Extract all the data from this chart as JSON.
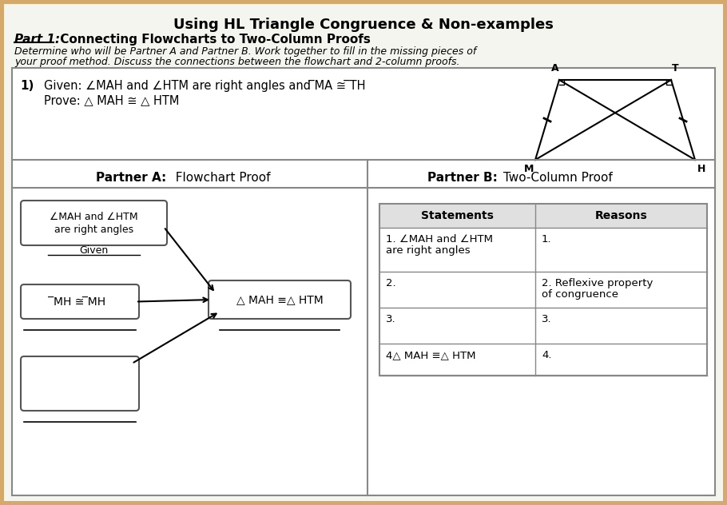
{
  "title": "Using HL Triangle Congruence & Non-examples",
  "part_label": "Part 1:",
  "part_title": " Connecting Flowcharts to Two-Column Proofs",
  "desc_line1": "Determine who will be Partner A and Partner B. Work together to fill in the missing pieces of",
  "desc_line2": "your proof method. Discuss the connections between the flowchart and 2-column proofs.",
  "problem_num": "1)",
  "given_text": "Given: ∠MAH and ∠HTM are right angles and ̅MA ≅ ̅TH",
  "prove_text": "Prove: △ MAH ≅ △ HTM",
  "partner_a_label": "Partner A:",
  "partner_a_title": "  Flowchart Proof",
  "partner_b_label": "Partner B:",
  "partner_b_title": " Two-Column Proof",
  "box1_line1": "∠MAH and ∠HTM",
  "box1_line2": "are right angles",
  "box1_sub": "Given",
  "box2_text": "̅MH ≅ ̅MH",
  "box3_text": "△ MAH ≡△ HTM",
  "statements_header": "Statements",
  "reasons_header": "Reasons",
  "stmt1_line1": "1. ∠MAH and ∠HTM",
  "stmt1_line2": "are right angles",
  "reason1": "1.",
  "stmt2": "2.",
  "reason2_line1": "2. Reflexive property",
  "reason2_line2": "of congruence",
  "stmt3": "3.",
  "reason3": "3.",
  "stmt4": "4△ MAH ≡△ HTM",
  "reason4": "4.",
  "bg_color": "#d4a96a",
  "paper_color": "#f5f5f0",
  "box_color": "#ffffff",
  "border_color": "#555555",
  "table_header_bg": "#e8e8e8"
}
